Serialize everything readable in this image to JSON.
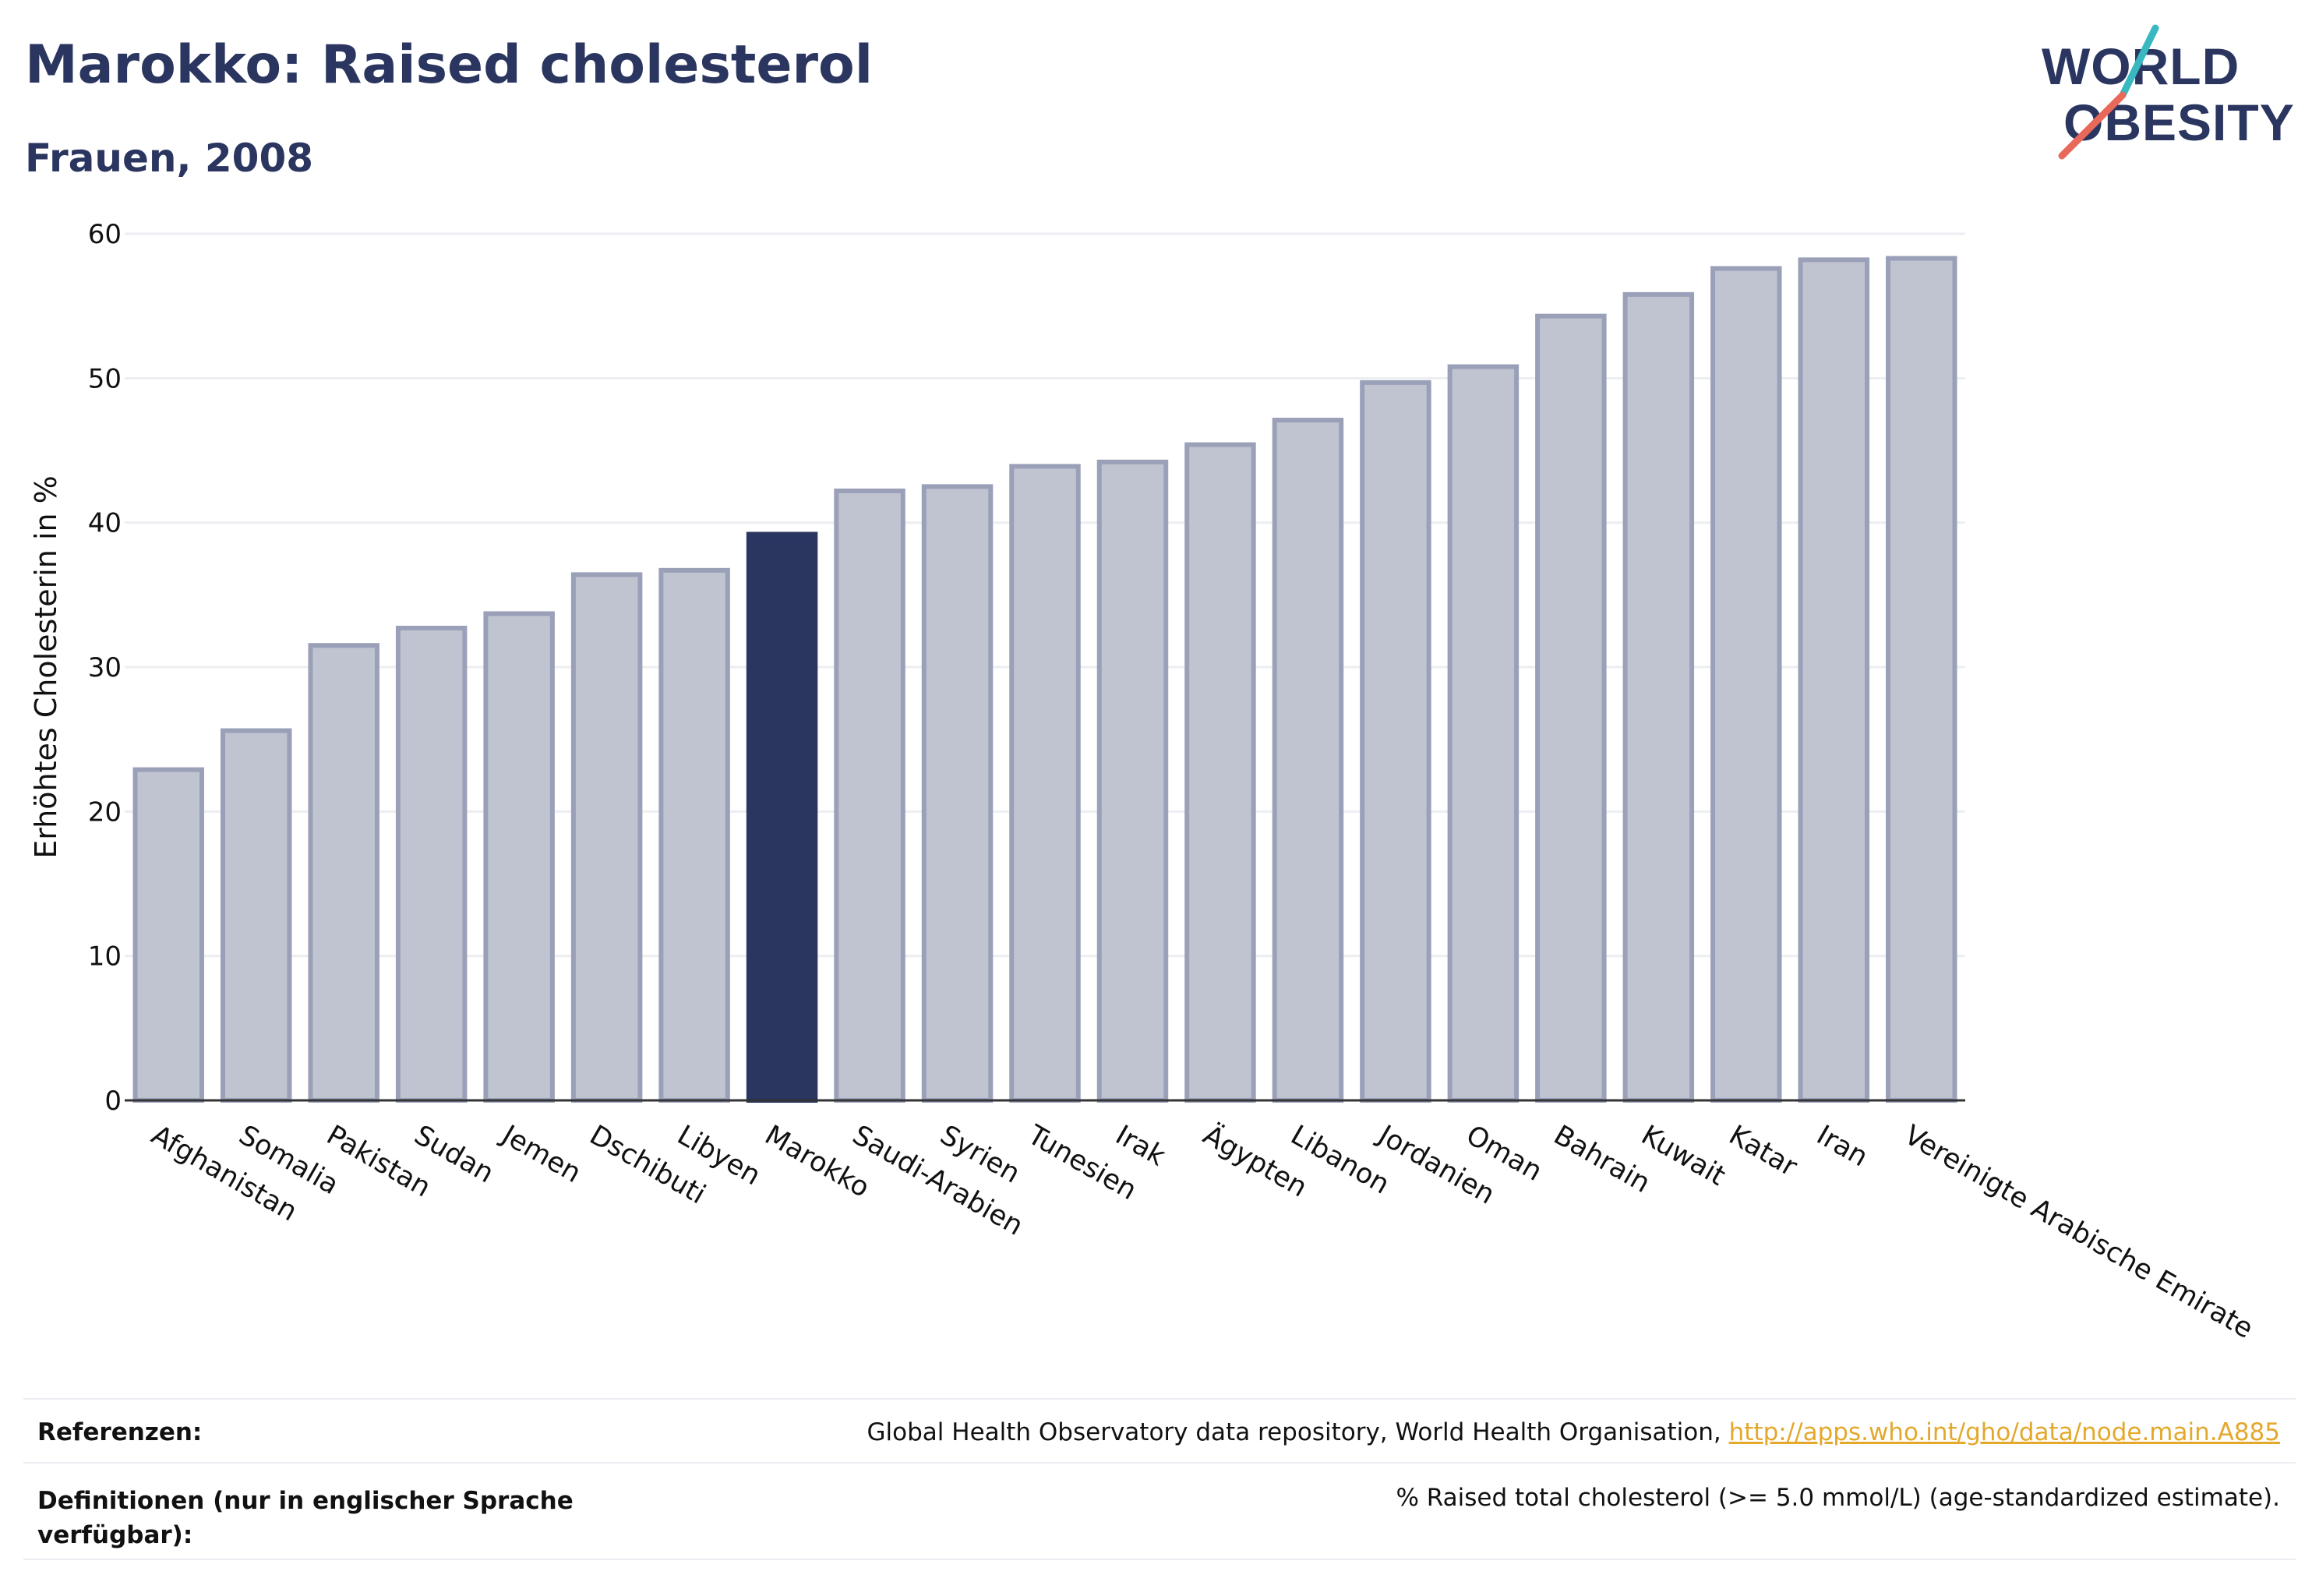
{
  "header": {
    "title": "Marokko: Raised cholesterol",
    "subtitle": "Frauen, 2008"
  },
  "logo": {
    "line1": "WORLD",
    "line2": "OBESITY",
    "colors": {
      "text": "#2a3560",
      "slash_teal": "#3ab8c0",
      "slash_coral": "#e8695a"
    }
  },
  "chart_data": {
    "type": "bar",
    "ylabel": "Erhöhtes Cholesterin in %",
    "ylim": [
      0,
      60
    ],
    "yticks": [
      0,
      10,
      20,
      30,
      40,
      50,
      60
    ],
    "grid": true,
    "highlight": "Marokko",
    "colors": {
      "bar": "#c0c4d1",
      "bar_border": "#9aa0b8",
      "highlight": "#2a3560"
    },
    "categories": [
      "Afghanistan",
      "Somalia",
      "Pakistan",
      "Sudan",
      "Jemen",
      "Dschibuti",
      "Libyen",
      "Marokko",
      "Saudi-Arabien",
      "Syrien",
      "Tunesien",
      "Irak",
      "Ägypten",
      "Libanon",
      "Jordanien",
      "Oman",
      "Bahrain",
      "Kuwait",
      "Katar",
      "Iran",
      "Vereinigte Arabische Emirate"
    ],
    "values": [
      22.9,
      25.6,
      31.5,
      32.7,
      33.7,
      36.4,
      36.7,
      39.2,
      42.2,
      42.5,
      43.9,
      44.2,
      45.4,
      47.1,
      49.7,
      50.8,
      54.3,
      55.8,
      57.6,
      58.2,
      58.3
    ]
  },
  "footer": {
    "references_label": "Referenzen:",
    "references_text": "Global Health Observatory data repository, World Health Organisation, ",
    "references_link": "http://apps.who.int/gho/data/node.main.A885",
    "definitions_label": "Definitionen (nur in englischer Sprache verfügbar):",
    "definitions_text": "% Raised total cholesterol (>= 5.0 mmol/L) (age-standardized estimate)."
  }
}
